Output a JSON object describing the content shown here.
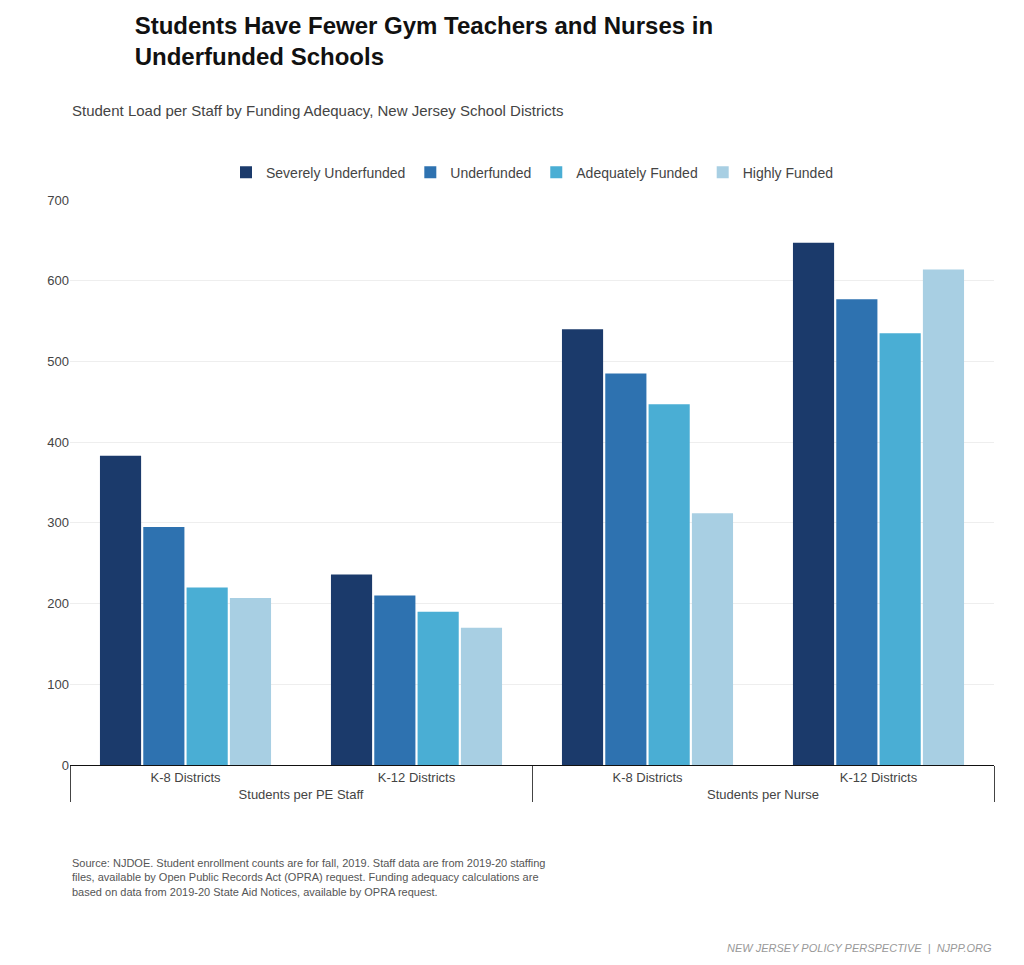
{
  "chart_data": {
    "type": "bar",
    "title": "Students Have Fewer Gym Teachers and Nurses in\nUnderfunded Schools",
    "subtitle": "Student Load per Staff by Funding Adequacy, New Jersey School Districts",
    "categories": [
      "K-8 Districts",
      "K-12 Districts",
      "K-8 Districts",
      "K-12 Districts"
    ],
    "groups": [
      "Students per PE Staff",
      "Students per PE Staff",
      "Students per Nurse",
      "Students per Nurse"
    ],
    "series": [
      {
        "name": "Severely Underfunded",
        "color": "#1b3a6b",
        "values": [
          383,
          236,
          540,
          647
        ]
      },
      {
        "name": "Underfunded",
        "color": "#2e72b0",
        "values": [
          295,
          210,
          485,
          577
        ]
      },
      {
        "name": "Adequately Funded",
        "color": "#4aaed4",
        "values": [
          220,
          190,
          447,
          535
        ]
      },
      {
        "name": "Highly Funded",
        "color": "#a8cfe3",
        "values": [
          207,
          170,
          312,
          614
        ]
      }
    ],
    "ylim": [
      0,
      700
    ],
    "yticks": [
      0,
      100,
      200,
      300,
      400,
      500,
      600,
      700
    ],
    "grid": true,
    "legend": "top",
    "annotations": [
      "Source: NJDOE. Student enrollment counts are for fall, 2019. Staff data are from 2019-20 staffing\nfiles, available by Open Public Records Act (OPRA) request. Funding adequacy calculations are\nbased on data from 2019-20 State Aid Notices, available by OPRA request.",
      "NEW JERSEY POLICY PERSPECTIVE  |  NJPP.ORG"
    ]
  }
}
